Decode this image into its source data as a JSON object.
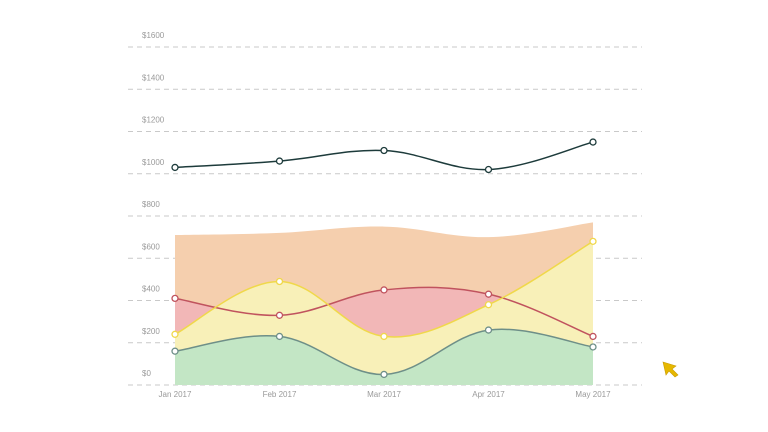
{
  "chart_data": {
    "type": "area",
    "title": "",
    "xlabel": "",
    "ylabel": "",
    "categories": [
      "Jan 2017",
      "Feb 2017",
      "Mar 2017",
      "Apr 2017",
      "May 2017"
    ],
    "y_ticks": [
      "$0",
      "$200",
      "$400",
      "$600",
      "$800",
      "$1000",
      "$1200",
      "$1400",
      "$1600"
    ],
    "ylim": [
      0,
      1600
    ],
    "grid": true,
    "series": [
      {
        "values": [
          710,
          720,
          750,
          700,
          770
        ],
        "color": "#f5cfae",
        "line_color": "#f5cfae",
        "fill": true,
        "markers": false
      },
      {
        "values": [
          410,
          330,
          450,
          430,
          230
        ],
        "color": "#f2b7b7",
        "line_color": "#c0535e",
        "fill": true,
        "markers": true
      },
      {
        "values": [
          240,
          490,
          230,
          380,
          680
        ],
        "color": "#f8f0b8",
        "line_color": "#f0d84a",
        "fill": true,
        "markers": true
      },
      {
        "values": [
          160,
          230,
          50,
          260,
          180
        ],
        "color": "#c3e6c5",
        "line_color": "#6e8f88",
        "fill": true,
        "markers": true
      },
      {
        "values": [
          1030,
          1060,
          1110,
          1020,
          1150
        ],
        "color": "#1d3b3b",
        "line_color": "#1d3b3b",
        "fill": false,
        "markers": true
      }
    ]
  },
  "cursor": {
    "icon": "cursor-arrow-icon",
    "color": "#e6b800"
  }
}
